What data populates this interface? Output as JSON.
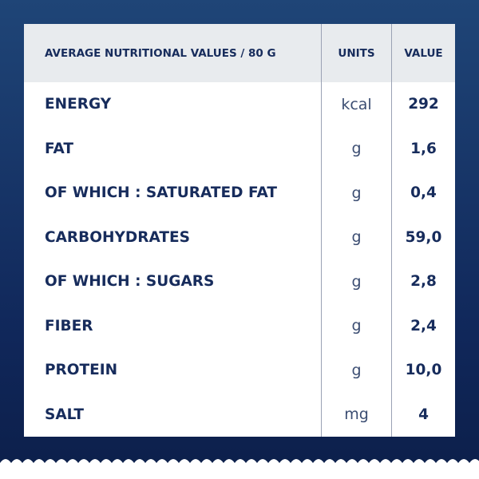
{
  "table": {
    "header": [
      "AVERAGE NUTRITIONAL VALUES / 80 G",
      "UNITS",
      "VALUE"
    ],
    "rows": [
      [
        "ENERGY",
        "kcal",
        "292"
      ],
      [
        "FAT",
        "g",
        "1,6"
      ],
      [
        "OF WHICH : SATURATED FAT",
        "g",
        "0,4"
      ],
      [
        "CARBOHYDRATES",
        "g",
        "59,0"
      ],
      [
        "OF WHICH : SUGARS",
        "g",
        "2,8"
      ],
      [
        "FIBER",
        "g",
        "2,4"
      ],
      [
        "PROTEIN",
        "g",
        "10,0"
      ],
      [
        "SALT",
        "mg",
        "4"
      ]
    ]
  }
}
